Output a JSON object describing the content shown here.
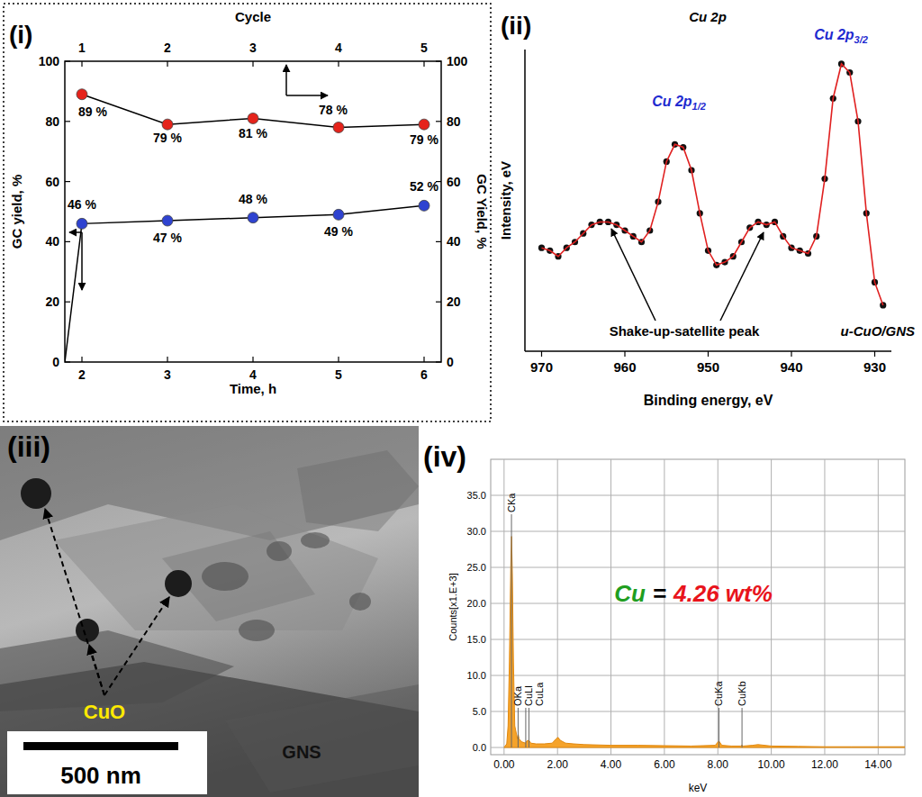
{
  "chart_data": [
    {
      "panel": "(i)",
      "type": "line",
      "x_label": "Time, h",
      "x2_label": "Cycle",
      "y_label": "GC yield, %",
      "y2_label": "GC Yield, %",
      "xlim": [
        1.8,
        6.2
      ],
      "xticks": [
        2,
        3,
        4,
        5,
        6
      ],
      "x2lim": [
        0.8,
        5.2
      ],
      "x2ticks": [
        1,
        2,
        3,
        4,
        5
      ],
      "ylim": [
        0,
        100
      ],
      "yticks": [
        0,
        20,
        40,
        60,
        80,
        100
      ],
      "y2lim": [
        0,
        100
      ],
      "y2ticks": [
        0,
        20,
        40,
        60,
        80,
        100
      ],
      "data_labels": true,
      "series": [
        {
          "color": "#e5231b",
          "marker": "circle",
          "axis": "y2",
          "x": [
            1,
            2,
            3,
            4,
            5
          ],
          "values": [
            89,
            79,
            81,
            78,
            79
          ],
          "value_labels": [
            "89 %",
            "79 %",
            "81 %",
            "78 %",
            "79 %"
          ]
        },
        {
          "color": "#2f43d0",
          "marker": "circle",
          "x": [
            1.8,
            2,
            3,
            4,
            5,
            6
          ],
          "values": [
            0,
            46,
            47,
            48,
            49,
            52
          ],
          "value_labels": [
            null,
            "46 %",
            "47 %",
            "48 %",
            "49 %",
            "52 %"
          ]
        }
      ]
    },
    {
      "panel": "(ii)",
      "type": "line",
      "title": "Cu 2p",
      "x_label": "Binding energy, eV",
      "y_label": "Intensity, eV",
      "xlim": [
        972,
        928
      ],
      "xticks": [
        970,
        960,
        950,
        940,
        930
      ],
      "ylim": [
        0,
        105
      ],
      "tick_labels": "x",
      "series": [
        {
          "color": "#e02020",
          "marker": "circle",
          "x": [
            970,
            969,
            968,
            967,
            966,
            965,
            964,
            963,
            962,
            961,
            960,
            959,
            958,
            957,
            956,
            955,
            954,
            953,
            952,
            951,
            950,
            949,
            948,
            947,
            946,
            945,
            944,
            943,
            942,
            941,
            940,
            939,
            938,
            937,
            936,
            935,
            934,
            933,
            932,
            931,
            930,
            929
          ],
          "values": [
            36,
            35,
            33,
            36,
            38,
            41,
            44,
            45,
            45,
            44,
            42,
            40,
            38,
            42,
            52,
            66,
            72,
            71,
            63,
            48,
            35,
            30,
            31,
            33,
            38,
            43,
            45,
            44,
            45,
            40,
            36,
            35,
            34,
            40,
            60,
            88,
            100,
            97,
            80,
            48,
            24,
            16
          ]
        }
      ],
      "annotations": [
        {
          "text": "Cu 2p",
          "subscript": "1/2"
        },
        {
          "text": "Cu 2p",
          "subscript": "3/2"
        },
        {
          "text": "Shake-up-satellite peak"
        },
        {
          "text": "u-CuO/GNS"
        }
      ]
    },
    {
      "panel": "(iv)",
      "type": "area",
      "color": "#f5a32a",
      "x_label": "keV",
      "y_label": "Counts[x1.E+3]",
      "xlim": [
        -0.5,
        15
      ],
      "xticks": [
        {
          "value": 0,
          "label": "0.00"
        },
        {
          "value": 2,
          "label": "2.00"
        },
        {
          "value": 4,
          "label": "4.00"
        },
        {
          "value": 6,
          "label": "6.00"
        },
        {
          "value": 8,
          "label": "8.00"
        },
        {
          "value": 10,
          "label": "10.00"
        },
        {
          "value": 12,
          "label": "12.00"
        },
        {
          "value": 14,
          "label": "14.00"
        }
      ],
      "ylim": [
        -1,
        40
      ],
      "yticks": [
        {
          "value": 0,
          "label": "0.0"
        },
        {
          "value": 5,
          "label": "5.0"
        },
        {
          "value": 10,
          "label": "10.0"
        },
        {
          "value": 15,
          "label": "15.0"
        },
        {
          "value": 20,
          "label": "20.0"
        },
        {
          "value": 25,
          "label": "25.0"
        },
        {
          "value": 30,
          "label": "30.0"
        },
        {
          "value": 35,
          "label": "35.0"
        }
      ],
      "grid": true,
      "x": [
        0,
        0.1,
        0.15,
        0.2,
        0.25,
        0.28,
        0.31,
        0.35,
        0.4,
        0.5,
        0.53,
        0.56,
        0.65,
        0.8,
        0.85,
        0.93,
        1.0,
        1.2,
        1.5,
        1.8,
        1.95,
        2.02,
        2.1,
        2.3,
        2.6,
        3,
        4,
        5,
        6,
        7,
        7.9,
        8.04,
        8.15,
        8.5,
        8.85,
        8.9,
        8.95,
        9.3,
        9.5,
        10,
        11,
        12,
        13,
        14,
        15
      ],
      "values": [
        0,
        0.5,
        3,
        12,
        25,
        29.3,
        24,
        12,
        3,
        1.2,
        1.8,
        1.2,
        0.8,
        0.6,
        0.9,
        1.0,
        0.6,
        0.5,
        0.5,
        0.6,
        1.2,
        1.4,
        1.0,
        0.6,
        0.5,
        0.4,
        0.3,
        0.3,
        0.25,
        0.2,
        0.3,
        0.9,
        0.3,
        0.2,
        0.2,
        0.3,
        0.2,
        0.3,
        0.4,
        0.2,
        0.15,
        0.1,
        0.1,
        0.1,
        0.1
      ],
      "peak_labels": [
        {
          "label": "CKa",
          "x": 0.277
        },
        {
          "label": "OKa",
          "x": 0.525
        },
        {
          "label": "CuLl",
          "x": 0.811
        },
        {
          "label": "CuLa",
          "x": 0.93
        },
        {
          "label": "CuKa",
          "x": 8.04
        },
        {
          "label": "CuKb",
          "x": 8.904
        }
      ],
      "annotations": [
        {
          "element": "Cu",
          "equals": "=",
          "amount": "4.26 wt%"
        }
      ]
    }
  ],
  "image": {
    "panel": "(iii)",
    "particle_label": "CuO",
    "support_label": "GNS",
    "scale_bar": "500 nm"
  }
}
